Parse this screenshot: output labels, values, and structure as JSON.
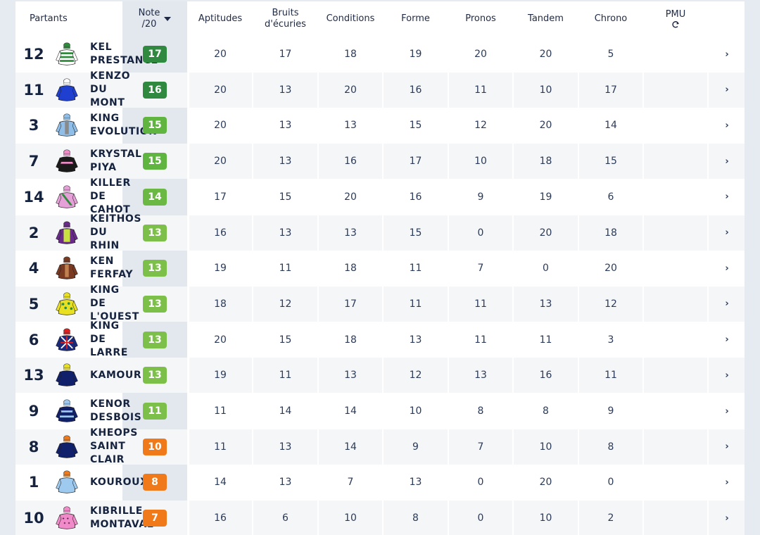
{
  "header": {
    "partants": "Partants",
    "note_line1": "Note",
    "note_line2": "/20",
    "sort_icon": "caret-down-icon",
    "aptitudes": "Aptitudes",
    "bruits_line1": "Bruits",
    "bruits_line2": "d'écuries",
    "conditions": "Conditions",
    "forme": "Forme",
    "pronos": "Pronos",
    "tandem": "Tandem",
    "chrono": "Chrono",
    "pmu": "PMU",
    "pmu_icon": "refresh-icon"
  },
  "colors": {
    "note_dark_green": "#2f8a3f",
    "note_green": "#5fb540",
    "note_light_green": "#7cc04a",
    "note_orange": "#f07a1a",
    "note_band": "#e3e8ee",
    "text": "#16233f"
  },
  "rows": [
    {
      "rank": "12",
      "name": "KEL PRESTANCE",
      "note": "17",
      "note_color": "#2f8a3f",
      "silk": "white-green-hoops",
      "aptitudes": "20",
      "bruits": "17",
      "conditions": "18",
      "forme": "19",
      "pronos": "20",
      "tandem": "20",
      "chrono": "5"
    },
    {
      "rank": "11",
      "name": "KENZO DU MONT",
      "note": "16",
      "note_color": "#2f8a3f",
      "silk": "royal-blue",
      "aptitudes": "20",
      "bruits": "13",
      "conditions": "20",
      "forme": "16",
      "pronos": "11",
      "tandem": "10",
      "chrono": "17"
    },
    {
      "rank": "3",
      "name": "KING EVOLUTION",
      "note": "15",
      "note_color": "#5fb540",
      "silk": "light-blue-grey",
      "aptitudes": "20",
      "bruits": "13",
      "conditions": "13",
      "forme": "15",
      "pronos": "12",
      "tandem": "20",
      "chrono": "14"
    },
    {
      "rank": "7",
      "name": "KRYSTAL PIYA",
      "note": "15",
      "note_color": "#5fb540",
      "silk": "black-pink",
      "aptitudes": "20",
      "bruits": "13",
      "conditions": "16",
      "forme": "17",
      "pronos": "10",
      "tandem": "18",
      "chrono": "15"
    },
    {
      "rank": "14",
      "name": "KILLER DE CAHOT",
      "note": "14",
      "note_color": "#6cb845",
      "silk": "pink-green-sash",
      "aptitudes": "17",
      "bruits": "15",
      "conditions": "20",
      "forme": "16",
      "pronos": "9",
      "tandem": "19",
      "chrono": "6"
    },
    {
      "rank": "2",
      "name": "KEITHOS DU RHIN",
      "note": "13",
      "note_color": "#7cc04a",
      "silk": "purple-yellow",
      "aptitudes": "16",
      "bruits": "13",
      "conditions": "13",
      "forme": "15",
      "pronos": "0",
      "tandem": "20",
      "chrono": "18"
    },
    {
      "rank": "4",
      "name": "KEN FERFAY",
      "note": "13",
      "note_color": "#7cc04a",
      "silk": "brown",
      "aptitudes": "19",
      "bruits": "11",
      "conditions": "18",
      "forme": "11",
      "pronos": "7",
      "tandem": "0",
      "chrono": "20"
    },
    {
      "rank": "5",
      "name": "KING DE L'OUEST",
      "note": "13",
      "note_color": "#7cc04a",
      "silk": "yellow-green-spots",
      "aptitudes": "18",
      "bruits": "12",
      "conditions": "17",
      "forme": "11",
      "pronos": "11",
      "tandem": "13",
      "chrono": "12"
    },
    {
      "rank": "6",
      "name": "KING DE LARRE",
      "note": "13",
      "note_color": "#7cc04a",
      "silk": "union-jack",
      "aptitudes": "20",
      "bruits": "15",
      "conditions": "18",
      "forme": "13",
      "pronos": "11",
      "tandem": "11",
      "chrono": "3"
    },
    {
      "rank": "13",
      "name": "KAMOUR",
      "note": "13",
      "note_color": "#7cc04a",
      "silk": "navy-yellow-cap",
      "aptitudes": "19",
      "bruits": "11",
      "conditions": "13",
      "forme": "12",
      "pronos": "13",
      "tandem": "16",
      "chrono": "11"
    },
    {
      "rank": "9",
      "name": "KENOR DESBOIS",
      "note": "11",
      "note_color": "#7cc04a",
      "silk": "navy-light-blue",
      "aptitudes": "11",
      "bruits": "14",
      "conditions": "14",
      "forme": "10",
      "pronos": "8",
      "tandem": "8",
      "chrono": "9"
    },
    {
      "rank": "8",
      "name": "KHEOPS SAINT CLAIR",
      "note": "10",
      "note_color": "#f07a1a",
      "silk": "navy-orange-cap",
      "aptitudes": "11",
      "bruits": "13",
      "conditions": "14",
      "forme": "9",
      "pronos": "7",
      "tandem": "10",
      "chrono": "8"
    },
    {
      "rank": "1",
      "name": "KOUROUX",
      "note": "8",
      "note_color": "#f07a1a",
      "silk": "light-blue-orange-cap",
      "aptitudes": "14",
      "bruits": "13",
      "conditions": "7",
      "forme": "13",
      "pronos": "0",
      "tandem": "20",
      "chrono": "0"
    },
    {
      "rank": "10",
      "name": "KIBRILLE MONTAVAL",
      "note": "7",
      "note_color": "#f07a1a",
      "silk": "pink-stars",
      "aptitudes": "16",
      "bruits": "6",
      "conditions": "10",
      "forme": "8",
      "pronos": "0",
      "tandem": "10",
      "chrono": "2"
    }
  ]
}
